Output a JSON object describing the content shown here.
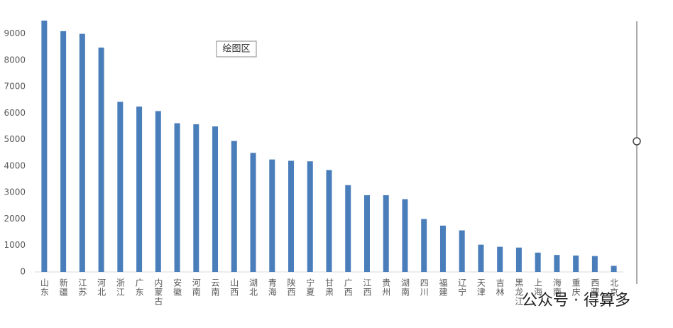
{
  "chart_data": {
    "type": "bar",
    "categories": [
      "山东",
      "新疆",
      "江苏",
      "河北",
      "浙江",
      "广东",
      "内蒙古",
      "安徽",
      "河南",
      "云南",
      "山西",
      "湖北",
      "青海",
      "陕西",
      "宁夏",
      "甘肃",
      "广西",
      "江西",
      "贵州",
      "湖南",
      "四川",
      "福建",
      "辽宁",
      "天津",
      "吉林",
      "黑龙江",
      "上海",
      "海南",
      "重庆",
      "西藏",
      "北京"
    ],
    "values": [
      9500,
      9100,
      9000,
      8480,
      6430,
      6250,
      6080,
      5620,
      5580,
      5500,
      4950,
      4500,
      4250,
      4200,
      4180,
      3850,
      3280,
      2900,
      2900,
      2750,
      2000,
      1750,
      1570,
      1030,
      950,
      920,
      730,
      640,
      620,
      600,
      230
    ],
    "color": "#4a7ebb",
    "ylim": [
      0,
      9500
    ],
    "yticks": [
      0,
      1000,
      2000,
      3000,
      4000,
      5000,
      6000,
      7000,
      8000,
      9000
    ],
    "grid": false
  },
  "tooltip": "绘图区",
  "watermark": "公众号 · 得算多"
}
